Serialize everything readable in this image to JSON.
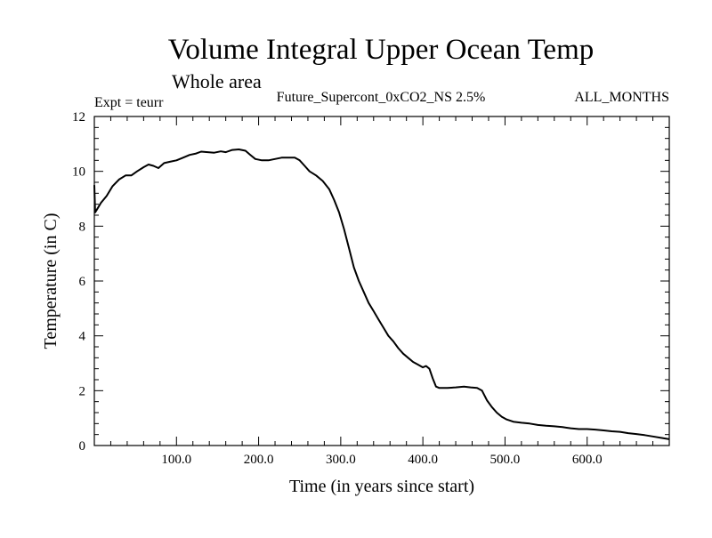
{
  "chart_data": {
    "type": "line",
    "title": "Volume Integral Upper Ocean Temp",
    "subtitle": "Whole area",
    "annotations": {
      "left": "Expt = teurr",
      "center": "Future_Supercont_0xCO2_NS 2.5%",
      "right": "ALL_MONTHS"
    },
    "xlabel": "Time (in years since start)",
    "ylabel": "Temperature (in C)",
    "xlim": [
      0,
      700
    ],
    "ylim": [
      0,
      12
    ],
    "x_ticks": [
      {
        "value": 100,
        "label": "100.0"
      },
      {
        "value": 200,
        "label": "200.0"
      },
      {
        "value": 300,
        "label": "300.0"
      },
      {
        "value": 400,
        "label": "400.0"
      },
      {
        "value": 500,
        "label": "500.0"
      },
      {
        "value": 600,
        "label": "600.0"
      }
    ],
    "y_ticks": [
      {
        "value": 0,
        "label": "0"
      },
      {
        "value": 2,
        "label": "2"
      },
      {
        "value": 4,
        "label": "4"
      },
      {
        "value": 6,
        "label": "6"
      },
      {
        "value": 8,
        "label": "8"
      },
      {
        "value": 10,
        "label": "10"
      },
      {
        "value": 12,
        "label": "12"
      }
    ],
    "grid": false,
    "series": [
      {
        "color": "#000000",
        "x": [
          0,
          1,
          3,
          8,
          15,
          22,
          30,
          38,
          45,
          52,
          60,
          66,
          72,
          78,
          85,
          92,
          100,
          108,
          116,
          124,
          130,
          138,
          146,
          154,
          160,
          168,
          176,
          184,
          190,
          196,
          204,
          212,
          220,
          228,
          236,
          244,
          250,
          256,
          262,
          270,
          278,
          286,
          292,
          298,
          304,
          310,
          316,
          322,
          328,
          334,
          340,
          346,
          352,
          358,
          364,
          370,
          376,
          382,
          388,
          394,
          400,
          404,
          408,
          412,
          416,
          420,
          425,
          430,
          440,
          450,
          458,
          466,
          472,
          478,
          484,
          490,
          496,
          502,
          510,
          520,
          530,
          540,
          550,
          560,
          570,
          580,
          590,
          600,
          610,
          620,
          630,
          640,
          650,
          660,
          670,
          680,
          690,
          700
        ],
        "y": [
          9.5,
          8.5,
          8.6,
          8.85,
          9.1,
          9.45,
          9.7,
          9.85,
          9.85,
          10.0,
          10.15,
          10.25,
          10.2,
          10.12,
          10.3,
          10.35,
          10.4,
          10.5,
          10.6,
          10.65,
          10.72,
          10.7,
          10.68,
          10.73,
          10.7,
          10.78,
          10.8,
          10.75,
          10.6,
          10.45,
          10.4,
          10.4,
          10.45,
          10.5,
          10.5,
          10.5,
          10.4,
          10.2,
          10.0,
          9.85,
          9.65,
          9.35,
          8.95,
          8.5,
          7.9,
          7.2,
          6.5,
          6.0,
          5.6,
          5.2,
          4.9,
          4.6,
          4.3,
          4.0,
          3.8,
          3.55,
          3.35,
          3.2,
          3.05,
          2.95,
          2.85,
          2.9,
          2.8,
          2.45,
          2.15,
          2.1,
          2.1,
          2.1,
          2.12,
          2.15,
          2.12,
          2.1,
          2.0,
          1.65,
          1.4,
          1.2,
          1.05,
          0.95,
          0.87,
          0.83,
          0.8,
          0.75,
          0.72,
          0.7,
          0.67,
          0.63,
          0.6,
          0.6,
          0.58,
          0.55,
          0.52,
          0.5,
          0.45,
          0.42,
          0.38,
          0.33,
          0.28,
          0.23
        ]
      }
    ]
  }
}
